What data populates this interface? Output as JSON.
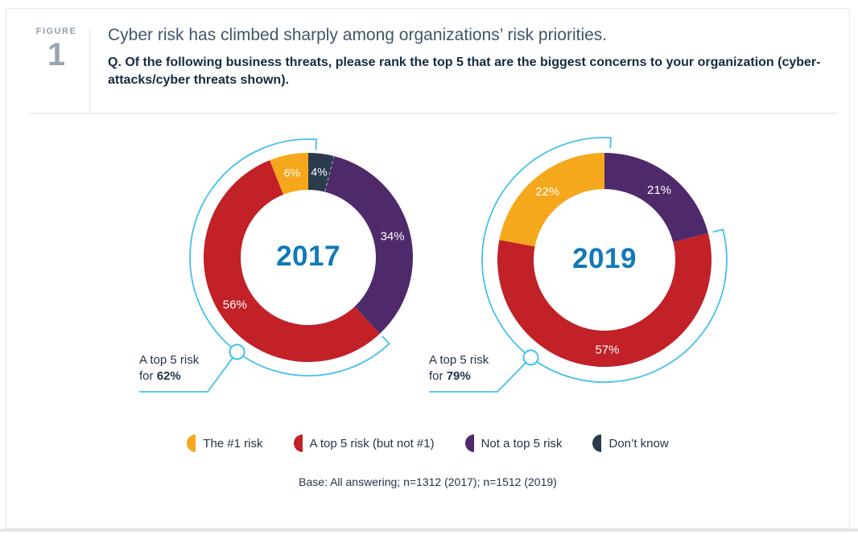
{
  "figure": {
    "label": "FIGURE",
    "number": "1"
  },
  "header": {
    "title": "Cyber risk has climbed sharply among organizations’ risk priorities.",
    "question": "Q. Of the following business threats, please rank the top 5 that are the biggest concerns to your organization (cyber-attacks/cyber threats shown)."
  },
  "colors": {
    "top1": "#f6a81c",
    "top5": "#c12127",
    "not_top5": "#4f2a6a",
    "dont_know": "#2a3b4c",
    "accent_blue": "#45c0ee",
    "year_blue": "#1179b8"
  },
  "chart_data": [
    {
      "type": "pie",
      "subtype": "donut",
      "title": "2017",
      "slices": [
        {
          "label": "Don’t know",
          "value": 4,
          "color_key": "dont_know",
          "top5": false
        },
        {
          "label": "Not a top 5 risk",
          "value": 34,
          "color_key": "not_top5",
          "top5": false
        },
        {
          "label": "A top 5 risk (but not #1)",
          "value": 56,
          "color_key": "top5",
          "top5": true
        },
        {
          "label": "The #1 risk",
          "value": 6,
          "color_key": "top1",
          "top5": true
        }
      ],
      "callout": {
        "line1": "A top 5 risk",
        "line2_prefix": "for ",
        "line2_value": "62%"
      }
    },
    {
      "type": "pie",
      "subtype": "donut",
      "title": "2019",
      "slices": [
        {
          "label": "Not a top 5 risk",
          "value": 21,
          "color_key": "not_top5",
          "top5": false
        },
        {
          "label": "A top 5 risk (but not #1)",
          "value": 57,
          "color_key": "top5",
          "top5": true
        },
        {
          "label": "The #1 risk",
          "value": 22,
          "color_key": "top1",
          "top5": true
        }
      ],
      "callout": {
        "line1": "A top 5 risk",
        "line2_prefix": "for ",
        "line2_value": "79%"
      }
    }
  ],
  "legend": [
    {
      "label": "The #1 risk",
      "color_key": "top1"
    },
    {
      "label": "A top 5 risk (but not #1)",
      "color_key": "top5"
    },
    {
      "label": "Not a top 5 risk",
      "color_key": "not_top5"
    },
    {
      "label": "Don’t know",
      "color_key": "dont_know"
    }
  ],
  "base_note": "Base: All answering; n=1312 (2017); n=1512 (2019)"
}
